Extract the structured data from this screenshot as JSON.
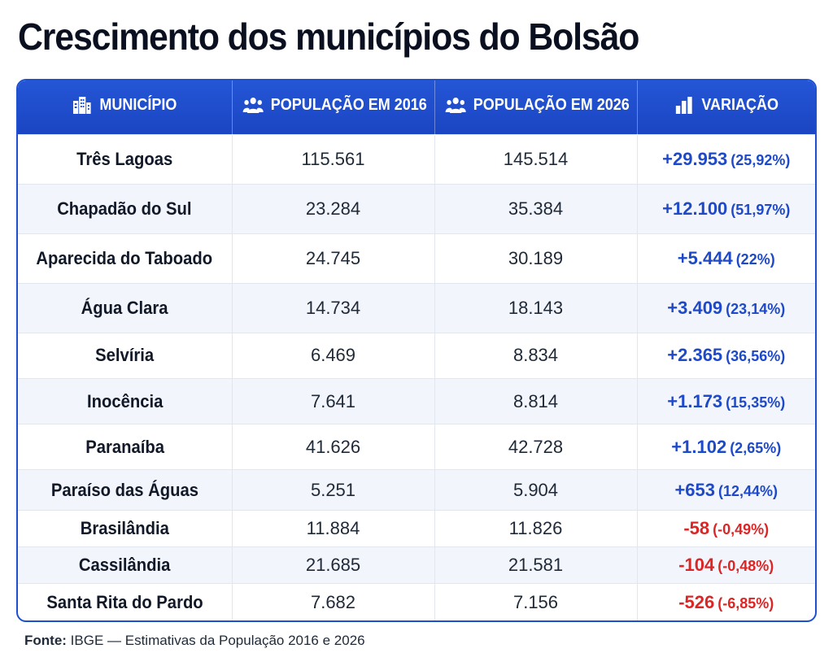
{
  "title": "Crescimento dos municípios do Bolsão",
  "table": {
    "headers": [
      {
        "label": "MUNICÍPIO",
        "icon": "buildings-icon"
      },
      {
        "label": "POPULAÇÃO EM 2016",
        "icon": "people-icon"
      },
      {
        "label": "POPULAÇÃO EM 2026",
        "icon": "people-icon"
      },
      {
        "label": "VARIAÇÃO",
        "icon": "bar-chart-icon"
      }
    ],
    "rows": [
      {
        "municipio": "Três Lagoas",
        "pop2016": "115.561",
        "pop2026": "145.514",
        "var_abs": "+29.953",
        "var_pct": "(25,92%)",
        "sign": "pos"
      },
      {
        "municipio": "Chapadão do Sul",
        "pop2016": "23.284",
        "pop2026": "35.384",
        "var_abs": "+12.100",
        "var_pct": "(51,97%)",
        "sign": "pos"
      },
      {
        "municipio": "Aparecida do Taboado",
        "pop2016": "24.745",
        "pop2026": "30.189",
        "var_abs": "+5.444",
        "var_pct": "(22%)",
        "sign": "pos"
      },
      {
        "municipio": "Água Clara",
        "pop2016": "14.734",
        "pop2026": "18.143",
        "var_abs": "+3.409",
        "var_pct": "(23,14%)",
        "sign": "pos"
      },
      {
        "municipio": "Selvíria",
        "pop2016": "6.469",
        "pop2026": "8.834",
        "var_abs": "+2.365",
        "var_pct": "(36,56%)",
        "sign": "pos"
      },
      {
        "municipio": "Inocência",
        "pop2016": "7.641",
        "pop2026": "8.814",
        "var_abs": "+1.173",
        "var_pct": "(15,35%)",
        "sign": "pos"
      },
      {
        "municipio": "Paranaíba",
        "pop2016": "41.626",
        "pop2026": "42.728",
        "var_abs": "+1.102",
        "var_pct": "(2,65%)",
        "sign": "pos"
      },
      {
        "municipio": "Paraíso das Águas",
        "pop2016": "5.251",
        "pop2026": "5.904",
        "var_abs": "+653",
        "var_pct": "(12,44%)",
        "sign": "pos"
      },
      {
        "municipio": "Brasilândia",
        "pop2016": "11.884",
        "pop2026": "11.826",
        "var_abs": "-58",
        "var_pct": "(-0,49%)",
        "sign": "neg"
      },
      {
        "municipio": "Cassilândia",
        "pop2016": "21.685",
        "pop2026": "21.581",
        "var_abs": "-104",
        "var_pct": "(-0,48%)",
        "sign": "neg"
      },
      {
        "municipio": "Santa Rita do Pardo",
        "pop2016": "7.682",
        "pop2026": "7.156",
        "var_abs": "-526",
        "var_pct": "(-6,85%)",
        "sign": "neg"
      }
    ]
  },
  "footer": {
    "label": "Fonte:",
    "text": "IBGE — Estimativas da População 2016 e 2026"
  },
  "colors": {
    "header_bg": "#1f4fd1",
    "positive": "#1e49c8",
    "negative": "#dc2626",
    "stripe": "#f2f5fb"
  }
}
